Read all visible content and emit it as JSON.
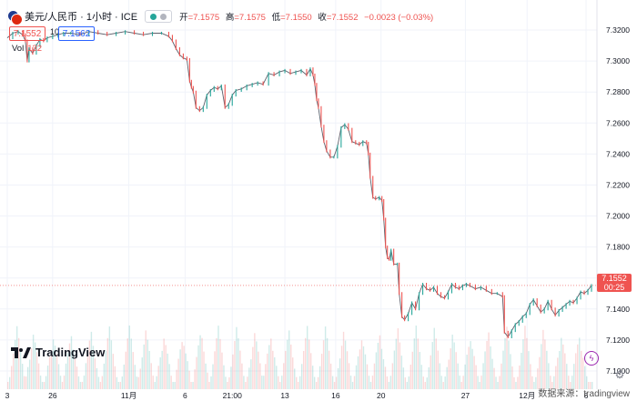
{
  "header": {
    "symbol": "美元/人民币 · 1小时 · ICE",
    "open_label": "开",
    "open": "=7.1575",
    "high_label": "高",
    "high": "=7.1575",
    "low_label": "低",
    "low": "=7.1550",
    "close_label": "收",
    "close": "=7.1552",
    "change": "−0.0023 (−0.03%)",
    "sell_price": "7.1552",
    "spread": "10",
    "buy_price": "7.1562",
    "vol_label": "Vol",
    "vol_value": "132"
  },
  "last_price": {
    "price": "7.1552",
    "countdown": "00:25"
  },
  "volume_last_label": "132",
  "watermark": "TradingView",
  "source": "数据来源：tradingview",
  "colors": {
    "up": "#26a69a",
    "down": "#ef5350",
    "grid": "#f0f3fa",
    "axis_text": "#131722"
  },
  "chart_data": {
    "type": "line",
    "title": "",
    "xlabel": "",
    "ylabel": "",
    "ylim": [
      7.09,
      7.33
    ],
    "y_ticks": [
      "7.3200",
      "7.3000",
      "7.2800",
      "7.2600",
      "7.2400",
      "7.2200",
      "7.2000",
      "7.1800",
      "7.1600",
      "7.1400",
      "7.1200",
      "7.1000"
    ],
    "y_tick_values": [
      7.32,
      7.3,
      7.28,
      7.26,
      7.24,
      7.22,
      7.2,
      7.18,
      7.16,
      7.14,
      7.12,
      7.1
    ],
    "x_ticks": [
      "3",
      "26",
      "11月",
      "6",
      "21:00",
      "13",
      "16",
      "20",
      "27",
      "12月",
      "6"
    ],
    "x_tick_index": [
      0,
      50,
      134,
      196,
      248,
      306,
      362,
      412,
      505,
      573,
      638
    ],
    "x_count": 645,
    "series": [
      {
        "points": [
          [
            0,
            7.315
          ],
          [
            6,
            7.318
          ],
          [
            12,
            7.319
          ],
          [
            17,
            7.317
          ],
          [
            20,
            7.313
          ],
          [
            22,
            7.3
          ],
          [
            24,
            7.308
          ],
          [
            28,
            7.305
          ],
          [
            32,
            7.31
          ],
          [
            36,
            7.314
          ],
          [
            40,
            7.313
          ],
          [
            44,
            7.315
          ],
          [
            50,
            7.316
          ],
          [
            56,
            7.317
          ],
          [
            62,
            7.318
          ],
          [
            70,
            7.318
          ],
          [
            80,
            7.317
          ],
          [
            90,
            7.319
          ],
          [
            100,
            7.318
          ],
          [
            110,
            7.317
          ],
          [
            120,
            7.318
          ],
          [
            130,
            7.319
          ],
          [
            140,
            7.318
          ],
          [
            150,
            7.317
          ],
          [
            160,
            7.318
          ],
          [
            170,
            7.318
          ],
          [
            178,
            7.316
          ],
          [
            182,
            7.313
          ],
          [
            186,
            7.308
          ],
          [
            190,
            7.304
          ],
          [
            194,
            7.302
          ],
          [
            198,
            7.301
          ],
          [
            201,
            7.287
          ],
          [
            203,
            7.283
          ],
          [
            205,
            7.28
          ],
          [
            208,
            7.27
          ],
          [
            212,
            7.268
          ],
          [
            216,
            7.27
          ],
          [
            220,
            7.278
          ],
          [
            224,
            7.281
          ],
          [
            228,
            7.283
          ],
          [
            232,
            7.282
          ],
          [
            236,
            7.284
          ],
          [
            240,
            7.27
          ],
          [
            244,
            7.272
          ],
          [
            248,
            7.278
          ],
          [
            252,
            7.281
          ],
          [
            258,
            7.282
          ],
          [
            264,
            7.284
          ],
          [
            270,
            7.285
          ],
          [
            276,
            7.286
          ],
          [
            282,
            7.285
          ],
          [
            288,
            7.292
          ],
          [
            294,
            7.291
          ],
          [
            300,
            7.293
          ],
          [
            306,
            7.294
          ],
          [
            312,
            7.292
          ],
          [
            318,
            7.293
          ],
          [
            324,
            7.294
          ],
          [
            330,
            7.291
          ],
          [
            334,
            7.295
          ],
          [
            337,
            7.291
          ],
          [
            339,
            7.285
          ],
          [
            341,
            7.275
          ],
          [
            343,
            7.27
          ],
          [
            346,
            7.258
          ],
          [
            349,
            7.248
          ],
          [
            352,
            7.242
          ],
          [
            356,
            7.238
          ],
          [
            360,
            7.238
          ],
          [
            364,
            7.245
          ],
          [
            368,
            7.257
          ],
          [
            372,
            7.259
          ],
          [
            376,
            7.256
          ],
          [
            380,
            7.248
          ],
          [
            384,
            7.247
          ],
          [
            388,
            7.246
          ],
          [
            392,
            7.248
          ],
          [
            396,
            7.247
          ],
          [
            398,
            7.24
          ],
          [
            400,
            7.225
          ],
          [
            403,
            7.212
          ],
          [
            406,
            7.211
          ],
          [
            410,
            7.212
          ],
          [
            413,
            7.21
          ],
          [
            415,
            7.198
          ],
          [
            417,
            7.18
          ],
          [
            419,
            7.173
          ],
          [
            421,
            7.172
          ],
          [
            423,
            7.178
          ],
          [
            426,
            7.169
          ],
          [
            430,
            7.169
          ],
          [
            432,
            7.15
          ],
          [
            435,
            7.135
          ],
          [
            438,
            7.133
          ],
          [
            442,
            7.137
          ],
          [
            446,
            7.144
          ],
          [
            450,
            7.14
          ],
          [
            454,
            7.15
          ],
          [
            458,
            7.156
          ],
          [
            462,
            7.153
          ],
          [
            466,
            7.152
          ],
          [
            470,
            7.154
          ],
          [
            474,
            7.15
          ],
          [
            478,
            7.148
          ],
          [
            482,
            7.147
          ],
          [
            486,
            7.151
          ],
          [
            490,
            7.156
          ],
          [
            494,
            7.154
          ],
          [
            498,
            7.153
          ],
          [
            502,
            7.155
          ],
          [
            506,
            7.156
          ],
          [
            510,
            7.155
          ],
          [
            516,
            7.153
          ],
          [
            522,
            7.154
          ],
          [
            528,
            7.152
          ],
          [
            534,
            7.15
          ],
          [
            540,
            7.15
          ],
          [
            546,
            7.148
          ],
          [
            548,
            7.125
          ],
          [
            552,
            7.122
          ],
          [
            556,
            7.126
          ],
          [
            560,
            7.13
          ],
          [
            564,
            7.132
          ],
          [
            568,
            7.135
          ],
          [
            572,
            7.137
          ],
          [
            576,
            7.143
          ],
          [
            580,
            7.146
          ],
          [
            584,
            7.142
          ],
          [
            588,
            7.138
          ],
          [
            592,
            7.14
          ],
          [
            596,
            7.145
          ],
          [
            600,
            7.14
          ],
          [
            604,
            7.136
          ],
          [
            608,
            7.139
          ],
          [
            612,
            7.141
          ],
          [
            616,
            7.143
          ],
          [
            620,
            7.145
          ],
          [
            624,
            7.144
          ],
          [
            628,
            7.147
          ],
          [
            632,
            7.151
          ],
          [
            636,
            7.15
          ],
          [
            640,
            7.152
          ],
          [
            644,
            7.1552
          ]
        ]
      }
    ],
    "volume": {
      "note_peaks": [
        10,
        28,
        50,
        70,
        92,
        112,
        134,
        152,
        172,
        193,
        213,
        232,
        252,
        272,
        290,
        310,
        330,
        350,
        370,
        390,
        410,
        430,
        450,
        470,
        490,
        510,
        530,
        550,
        570,
        590,
        610,
        630
      ],
      "max": 1000
    }
  }
}
